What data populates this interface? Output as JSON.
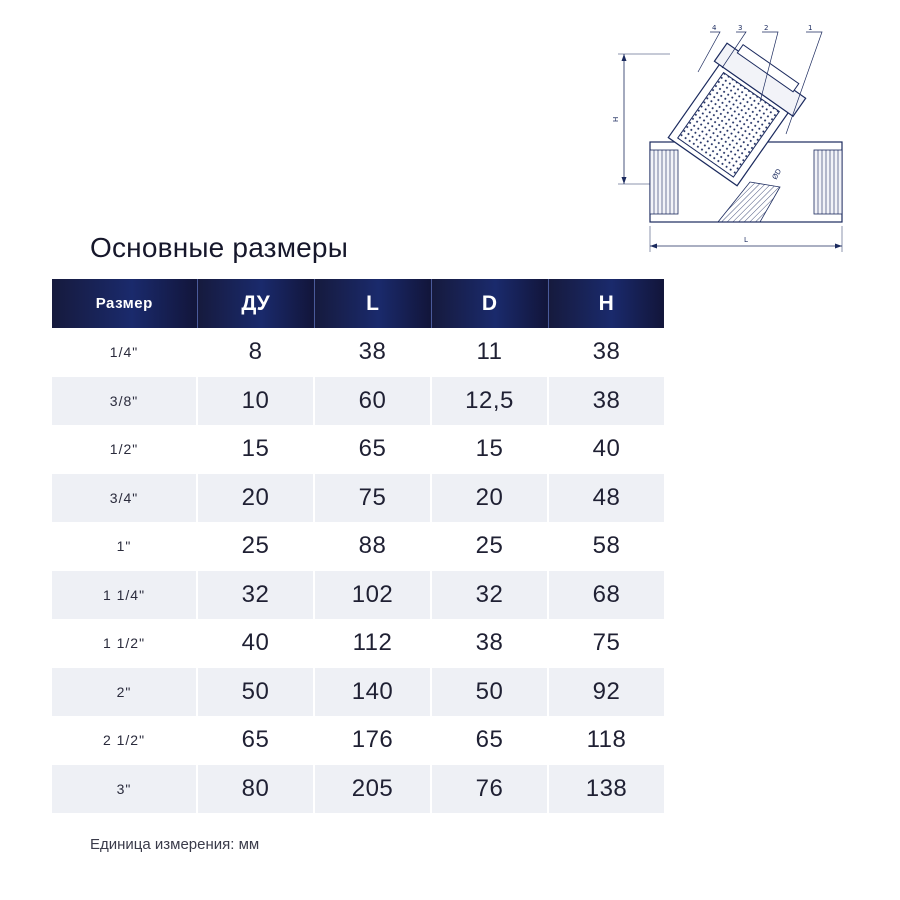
{
  "title": "Основные размеры",
  "drawing": {
    "callouts": [
      "4",
      "3",
      "2",
      "1"
    ],
    "dim_h": "H",
    "dim_d": "ØD",
    "dim_l": "L"
  },
  "table": {
    "headers": [
      "Размер",
      "ДУ",
      "L",
      "D",
      "H"
    ],
    "rows": [
      [
        "1/4\"",
        "8",
        "38",
        "11",
        "38"
      ],
      [
        "3/8\"",
        "10",
        "60",
        "12,5",
        "38"
      ],
      [
        "1/2\"",
        "15",
        "65",
        "15",
        "40"
      ],
      [
        "3/4\"",
        "20",
        "75",
        "20",
        "48"
      ],
      [
        "1\"",
        "25",
        "88",
        "25",
        "58"
      ],
      [
        "1 1/4\"",
        "32",
        "102",
        "32",
        "68"
      ],
      [
        "1 1/2\"",
        "40",
        "112",
        "38",
        "75"
      ],
      [
        "2\"",
        "50",
        "140",
        "50",
        "92"
      ],
      [
        "2 1/2\"",
        "65",
        "176",
        "65",
        "118"
      ],
      [
        "3\"",
        "80",
        "205",
        "76",
        "138"
      ]
    ]
  },
  "footnote": "Единица измерения: мм",
  "colors": {
    "header_dark": "#161a3d",
    "header_mid": "#1a2a6c",
    "row_alt": "#eef0f5",
    "drawing_line": "#1b2a5e"
  }
}
